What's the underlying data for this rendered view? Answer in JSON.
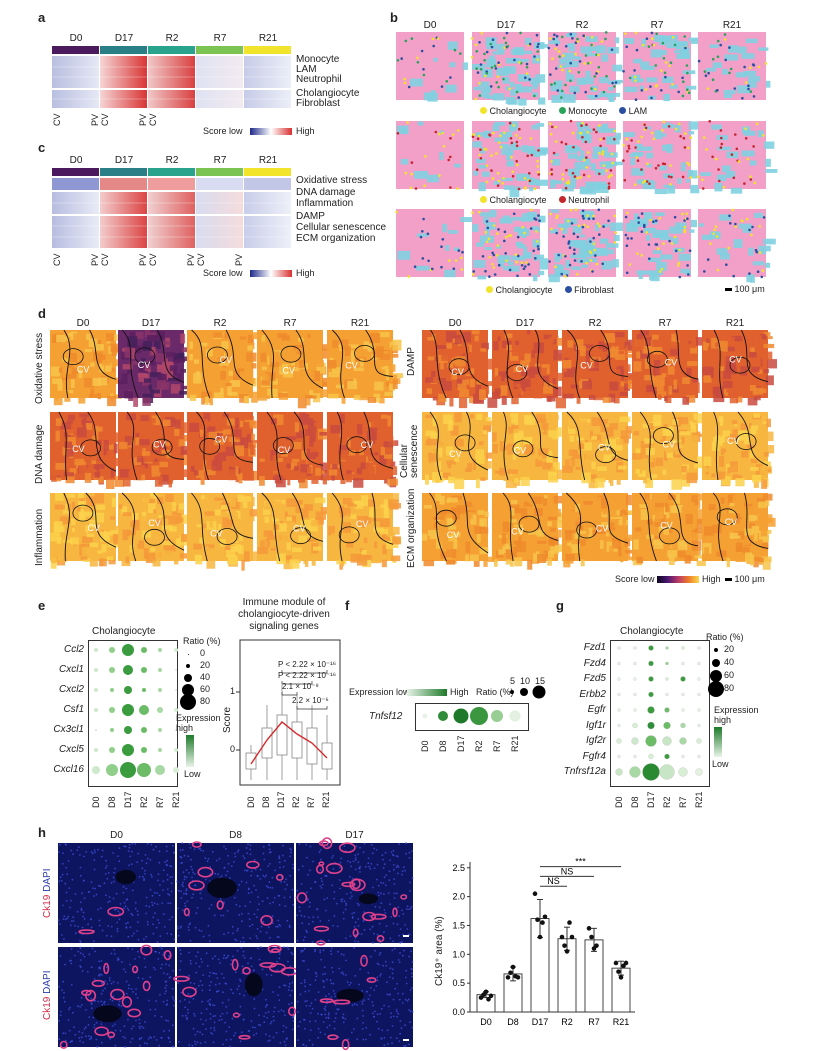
{
  "panel_labels": {
    "a": "a",
    "b": "b",
    "c": "c",
    "d": "d",
    "e": "e",
    "f": "f",
    "g": "g",
    "h": "h"
  },
  "timepoints": [
    "D0",
    "D17",
    "R2",
    "R7",
    "R21"
  ],
  "timepoint_colors": [
    "#4b1a5e",
    "#2a7f86",
    "#2aa38d",
    "#7cc451",
    "#f2e32b"
  ],
  "panel_a": {
    "rows": [
      "Monocyte",
      "LAM",
      "Neutrophil",
      "Cholangiocyte",
      "Fibroblast"
    ],
    "axis_left": "CV",
    "axis_right": "PV",
    "legend": {
      "low": "Score low",
      "high": "High"
    }
  },
  "panel_c": {
    "rows": [
      "Oxidative stress",
      "DNA damage",
      "Inflammation",
      "DAMP",
      "Cellular senescence",
      "ECM organization"
    ],
    "axis_left": "CV",
    "axis_right": "PV",
    "legend": {
      "low": "Score low",
      "high": "High"
    }
  },
  "panel_b": {
    "legends": [
      [
        {
          "label": "Cholangiocyte",
          "color": "#f2e32b"
        },
        {
          "label": "Monocyte",
          "color": "#2aa35a"
        },
        {
          "label": "LAM",
          "color": "#2b4fa0"
        }
      ],
      [
        {
          "label": "Cholangiocyte",
          "color": "#f2e32b"
        },
        {
          "label": "Neutrophil",
          "color": "#c4262e"
        }
      ],
      [
        {
          "label": "Cholangiocyte",
          "color": "#f2e32b"
        },
        {
          "label": "Fibroblast",
          "color": "#2b4fa0"
        }
      ]
    ],
    "scale": "100 μm"
  },
  "panel_d": {
    "left_rows": [
      "Oxidative stress",
      "DNA damage",
      "Inflammation"
    ],
    "right_rows": [
      "DAMP",
      "Cellular senescence",
      "ECM organization"
    ],
    "cv_label": "CV",
    "legend": {
      "low": "Score low",
      "high": "High",
      "scale": "100 μm"
    }
  },
  "panel_e": {
    "title": "Cholangiocyte",
    "genes": [
      "Ccl2",
      "Cxcl1",
      "Cxcl2",
      "Csf1",
      "Cx3cl1",
      "Cxcl5",
      "Cxcl16"
    ],
    "x": [
      "D0",
      "D8",
      "D17",
      "R2",
      "R7",
      "R21"
    ],
    "ratio_title": "Ratio (%)",
    "ratio_ticks": [
      "0",
      "20",
      "40",
      "60",
      "80"
    ],
    "expr_title": "Expression high",
    "expr_low": "Low",
    "box_title": "Immune module of cholangiocyte-driven signaling genes",
    "box_ylabel": "Score",
    "box_yticks": [
      "1",
      "0"
    ],
    "pvals": [
      "P < 2.22 × 10⁻¹⁶",
      "P < 2.22 × 10⁻¹⁶",
      "2.1 × 10⁻⁹",
      "2.2 × 10⁻⁶"
    ]
  },
  "panel_f": {
    "gene": "Tnfsf12",
    "x": [
      "D0",
      "D8",
      "D17",
      "R2",
      "R7",
      "R21"
    ],
    "expr_low": "Expression low",
    "expr_high": "High",
    "ratio_title": "Ratio (%)",
    "ratio_ticks": [
      "5",
      "10",
      "15"
    ]
  },
  "panel_g": {
    "title": "Cholangiocyte",
    "genes": [
      "Fzd1",
      "Fzd4",
      "Fzd5",
      "Erbb2",
      "Egfr",
      "Igf1r",
      "Igf2r",
      "Fgfr4",
      "Tnfrsf12a"
    ],
    "x": [
      "D0",
      "D8",
      "D17",
      "R2",
      "R7",
      "R21"
    ],
    "ratio_title": "Ratio (%)",
    "ratio_ticks": [
      "20",
      "40",
      "60",
      "80"
    ],
    "expr_title": "Expression high",
    "expr_low": "Low"
  },
  "panel_h": {
    "top_labels": [
      "D0",
      "D8",
      "D17"
    ],
    "bottom_labels": [
      "R2",
      "R7",
      "R21"
    ],
    "stain_label": "Ck19 DAPI"
  },
  "chart_data": {
    "type": "bar",
    "categories": [
      "D0",
      "D8",
      "D17",
      "R2",
      "R7",
      "R21"
    ],
    "values": [
      0.3,
      0.66,
      1.62,
      1.27,
      1.25,
      0.76
    ],
    "errors": [
      0.05,
      0.12,
      0.33,
      0.2,
      0.2,
      0.12
    ],
    "points": [
      [
        0.25,
        0.3,
        0.35,
        0.22,
        0.28
      ],
      [
        0.6,
        0.68,
        0.78,
        0.62,
        0.6
      ],
      [
        2.05,
        1.6,
        1.3,
        1.55,
        1.65
      ],
      [
        1.3,
        1.15,
        1.05,
        1.55,
        1.3
      ],
      [
        1.45,
        1.3,
        1.1,
        1.15
      ],
      [
        0.85,
        0.7,
        0.6,
        0.8,
        0.85
      ]
    ],
    "ylabel": "Ck19⁺ area (%)",
    "yticks": [
      0,
      0.5,
      1.0,
      1.5,
      2.0,
      2.5
    ],
    "ylim": [
      0,
      2.6
    ],
    "significance": [
      {
        "from": "D17",
        "to": "R2",
        "label": "NS"
      },
      {
        "from": "D17",
        "to": "R7",
        "label": "NS"
      },
      {
        "from": "D17",
        "to": "R21",
        "label": "***"
      }
    ]
  }
}
